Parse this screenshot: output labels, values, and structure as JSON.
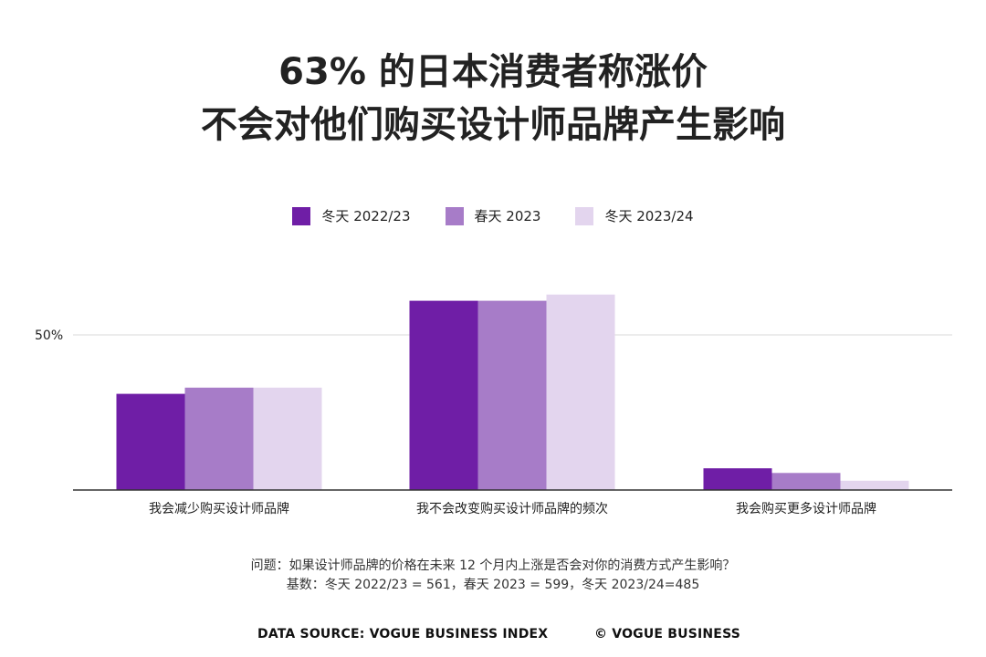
{
  "title_line1": "63% 的日本消费者称涨价",
  "title_line2": "不会对他们购买设计师品牌产生影响",
  "chart_data": {
    "type": "bar",
    "categories": [
      "我会减少购买设计师品牌",
      "我不会改变购买设计师品牌的频次",
      "我会购买更多设计师品牌"
    ],
    "series": [
      {
        "name": "冬天 2022/23",
        "color": "#6f1ea6",
        "values": [
          31,
          61,
          7
        ]
      },
      {
        "name": "春天 2023",
        "color": "#a77cc8",
        "values": [
          33,
          61,
          5.5
        ]
      },
      {
        "name": "冬天 2023/24",
        "color": "#e3d5ee",
        "values": [
          33,
          63,
          3
        ]
      }
    ],
    "yticks": [
      {
        "value": 50,
        "label": "50%"
      }
    ],
    "ylim": [
      0,
      70
    ],
    "grid": true,
    "legend_position": "top-center"
  },
  "footnote_line1": "问题：如果设计师品牌的价格在未来 12 个月内上涨是否会对你的消费方式产生影响？",
  "footnote_line2": "基数：冬天 2022/23 = 561，春天 2023 = 599，冬天 2023/24=485",
  "source_left": "DATA SOURCE: VOGUE BUSINESS INDEX",
  "source_right": "© VOGUE BUSINESS"
}
